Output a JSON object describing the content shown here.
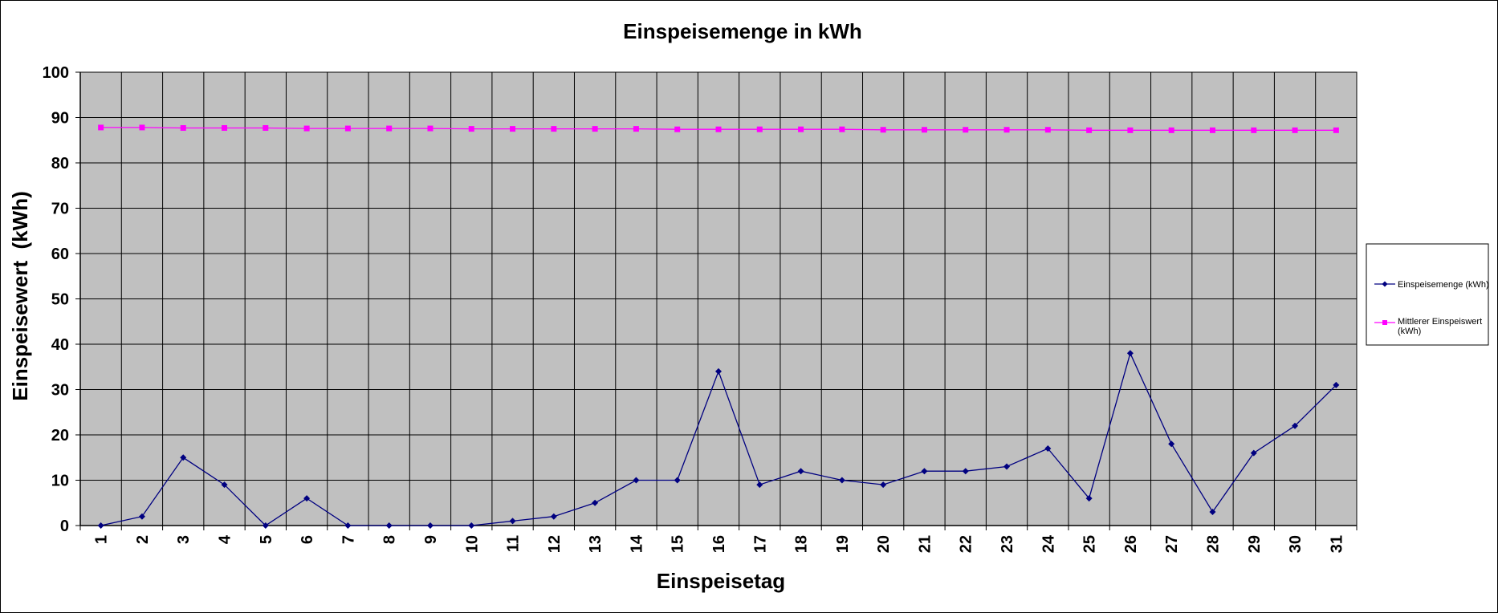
{
  "chart_data": {
    "type": "line",
    "title": "Einspeisemenge in kWh",
    "xlabel": "Einspeisetag",
    "ylabel": "Einspeisewert  (kWh)",
    "categories": [
      "1",
      "2",
      "3",
      "4",
      "5",
      "6",
      "7",
      "8",
      "9",
      "10",
      "11",
      "12",
      "13",
      "14",
      "15",
      "16",
      "17",
      "18",
      "19",
      "20",
      "21",
      "22",
      "23",
      "24",
      "25",
      "26",
      "27",
      "28",
      "29",
      "30",
      "31"
    ],
    "ylim": [
      0,
      100
    ],
    "yticks": [
      "0",
      "10",
      "20",
      "30",
      "40",
      "50",
      "60",
      "70",
      "80",
      "90",
      "100"
    ],
    "grid": true,
    "legend_position": "right",
    "series": [
      {
        "name": "Einspeisemenge (kWh)",
        "color": "#000080",
        "marker": "diamond",
        "values": [
          0,
          2,
          15,
          9,
          0,
          6,
          0,
          0,
          0,
          0,
          1,
          2,
          5,
          10,
          10,
          34,
          9,
          12,
          10,
          9,
          12,
          12,
          13,
          17,
          6,
          38,
          18,
          3,
          16,
          22,
          31
        ]
      },
      {
        "name": "Mittlerer Einspeiswert (kWh)",
        "color": "#ff00ff",
        "marker": "square",
        "values": [
          87.8,
          87.8,
          87.7,
          87.7,
          87.7,
          87.6,
          87.6,
          87.6,
          87.6,
          87.5,
          87.5,
          87.5,
          87.5,
          87.5,
          87.4,
          87.4,
          87.4,
          87.4,
          87.4,
          87.3,
          87.3,
          87.3,
          87.3,
          87.3,
          87.2,
          87.2,
          87.2,
          87.2,
          87.2,
          87.2,
          87.2
        ]
      }
    ],
    "colors": {
      "plot_background": "#c0c0c0",
      "gridline": "#000000"
    }
  }
}
